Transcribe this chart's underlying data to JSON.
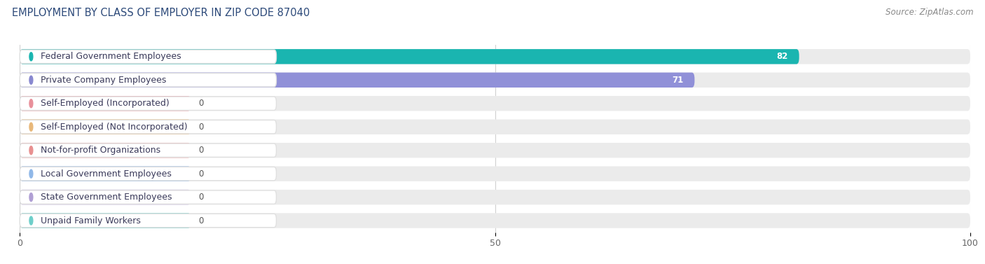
{
  "title": "EMPLOYMENT BY CLASS OF EMPLOYER IN ZIP CODE 87040",
  "source": "Source: ZipAtlas.com",
  "categories": [
    "Federal Government Employees",
    "Private Company Employees",
    "Self-Employed (Incorporated)",
    "Self-Employed (Not Incorporated)",
    "Not-for-profit Organizations",
    "Local Government Employees",
    "State Government Employees",
    "Unpaid Family Workers"
  ],
  "values": [
    82,
    71,
    0,
    0,
    0,
    0,
    0,
    0
  ],
  "bar_colors": [
    "#1ab5b0",
    "#9090d8",
    "#e8909a",
    "#e8b87a",
    "#e89090",
    "#90b8e8",
    "#b09fd4",
    "#6ecfca"
  ],
  "dot_colors": [
    "#1ab5b0",
    "#8888d0",
    "#e8909a",
    "#e8b87a",
    "#e89090",
    "#90b8e8",
    "#b09fd4",
    "#6ecfca"
  ],
  "row_bg_color": "#ebebeb",
  "label_bg_color": "#ffffff",
  "xlim_max": 100,
  "xticks": [
    0,
    50,
    100
  ],
  "background_color": "#ffffff",
  "title_color": "#2d4a7a",
  "source_color": "#888888",
  "title_fontsize": 10.5,
  "source_fontsize": 8.5,
  "label_fontsize": 9,
  "value_fontsize": 8.5,
  "zero_bar_width": 18
}
